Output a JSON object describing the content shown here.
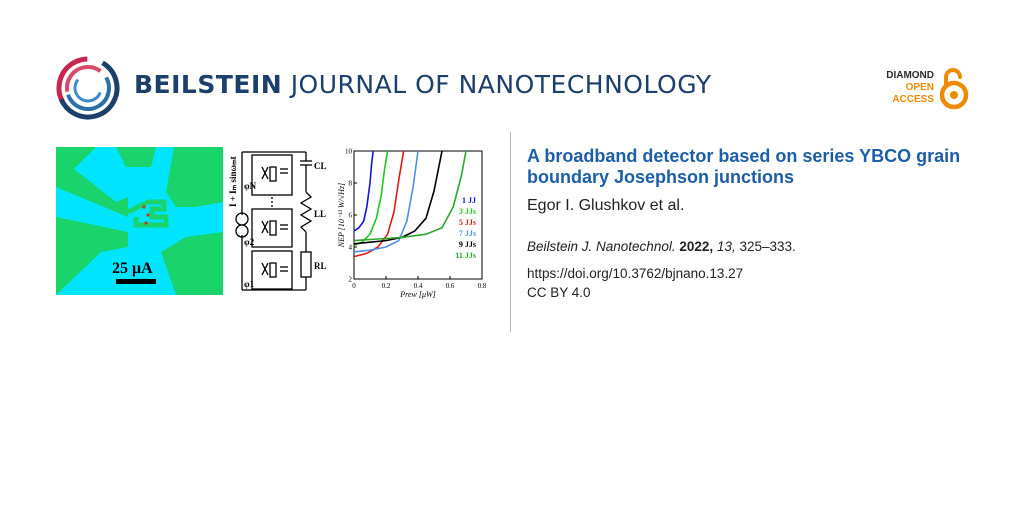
{
  "header": {
    "journal_bold": "BEILSTEIN",
    "journal_light": "JOURNAL OF NANOTECHNOLOGY",
    "badge": {
      "line1": "DIAMOND",
      "line2": "OPEN",
      "line3": "ACCESS"
    }
  },
  "colors": {
    "brand_blue": "#1d3f6b",
    "title_blue": "#1d5ea8",
    "oa_orange": "#f08a00",
    "chip_cyan": "#00e5ff",
    "chip_green": "#18d46b"
  },
  "graphic": {
    "scale_bar": "25 μA",
    "circuit_labels": {
      "source": "I + Iₘ sinωₘt",
      "phi_n": "φN",
      "phi_2": "φ2",
      "phi_1": "φ1",
      "cl": "CL",
      "ll": "LL",
      "rl": "RL"
    },
    "chart_data": {
      "type": "line",
      "xlabel": "Prew [μW]",
      "ylabel": "NEP [10⁻¹³ W/√Hz]",
      "xlim": [
        0,
        0.8
      ],
      "ylim": [
        2,
        10
      ],
      "xticks": [
        "0",
        "0.2",
        "0.4",
        "0.6",
        "0.8"
      ],
      "yticks": [
        "2",
        "4",
        "6",
        "8",
        "10"
      ],
      "series": [
        {
          "name": "1 JJ",
          "color": "#1515d0",
          "x": [
            0,
            0.03,
            0.06,
            0.08,
            0.1,
            0.11,
            0.12
          ],
          "y": [
            5.0,
            5.2,
            5.6,
            6.5,
            8.0,
            9.2,
            10
          ]
        },
        {
          "name": "3 JJs",
          "color": "#1ec81e",
          "x": [
            0,
            0.05,
            0.1,
            0.14,
            0.17,
            0.19,
            0.21
          ],
          "y": [
            4.1,
            4.3,
            4.8,
            5.8,
            7.2,
            8.8,
            10
          ]
        },
        {
          "name": "5 JJs",
          "color": "#e01818",
          "x": [
            0,
            0.08,
            0.15,
            0.21,
            0.25,
            0.28,
            0.31
          ],
          "y": [
            3.4,
            3.6,
            4.0,
            4.8,
            6.2,
            8.2,
            10
          ]
        },
        {
          "name": "7 JJs",
          "color": "#5090e0",
          "x": [
            0,
            0.1,
            0.2,
            0.28,
            0.33,
            0.37,
            0.4
          ],
          "y": [
            3.7,
            3.8,
            4.0,
            4.4,
            5.6,
            7.8,
            10
          ]
        },
        {
          "name": "9 JJs",
          "color": "#000000",
          "x": [
            0,
            0.1,
            0.2,
            0.3,
            0.38,
            0.45,
            0.5,
            0.55
          ],
          "y": [
            4.2,
            4.3,
            4.4,
            4.6,
            5.0,
            5.8,
            7.5,
            10
          ]
        },
        {
          "name": "11 JJs",
          "color": "#2aa82a",
          "x": [
            0,
            0.15,
            0.3,
            0.45,
            0.55,
            0.62,
            0.67,
            0.7
          ],
          "y": [
            4.4,
            4.5,
            4.6,
            4.8,
            5.2,
            6.5,
            8.4,
            10
          ]
        }
      ]
    }
  },
  "article": {
    "title": "A broadband detector based on series YBCO grain boundary Josephson junctions",
    "authors": "Egor I. Glushkov et al.",
    "journal_abbrev": "Beilstein J. Nanotechnol.",
    "year": "2022,",
    "volume": "13,",
    "pages": "325–333.",
    "doi": "https://doi.org/10.3762/bjnano.13.27",
    "license": "CC BY 4.0"
  }
}
